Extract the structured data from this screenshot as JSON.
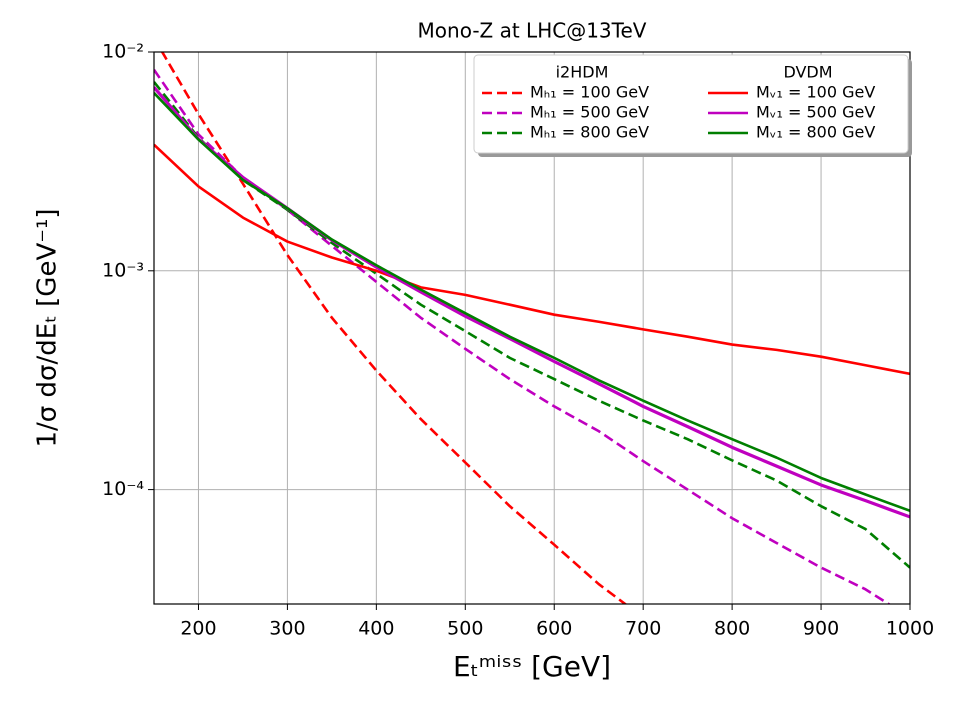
{
  "chart_data": {
    "type": "line",
    "title": "Mono-Z at LHC@13TeV",
    "x_label": "Eₜᵐⁱˢˢ [GeV]",
    "y_label": "1/σ dσ/dEₜ [GeV⁻¹]",
    "log_y": true,
    "grid": true,
    "legend_position": "upper right",
    "legend_titles": [
      "i2HDM",
      "DVDM"
    ],
    "x": [
      150,
      200,
      250,
      300,
      350,
      400,
      450,
      500,
      550,
      600,
      650,
      700,
      750,
      800,
      850,
      900,
      950,
      1000
    ],
    "xlim": [
      150,
      1000
    ],
    "xticks": [
      200,
      300,
      400,
      500,
      600,
      700,
      800,
      900,
      1000
    ],
    "ylim": [
      3e-05,
      0.01
    ],
    "yticks": [
      {
        "value": 0.0001,
        "label": "10⁻⁴"
      },
      {
        "value": 0.001,
        "label": "10⁻³"
      },
      {
        "value": 0.01,
        "label": "10⁻²"
      }
    ],
    "series": [
      {
        "name": "Mₕ₁ = 100 GeV",
        "color": "#ff0000",
        "linestyle": "dashed",
        "values": [
          0.0116,
          0.0052,
          0.0025,
          0.00118,
          0.00061,
          0.00035,
          0.00021,
          0.000133,
          8.4e-05,
          5.6e-05,
          3.7e-05,
          2.6e-05,
          null,
          null,
          null,
          null,
          null,
          null
        ]
      },
      {
        "name": "Mₕ₁ = 500 GeV",
        "color": "#bf00bf",
        "linestyle": "dashed",
        "values": [
          0.0083,
          0.0042,
          0.00267,
          0.0019,
          0.0013,
          0.00089,
          0.00061,
          0.00044,
          0.00032,
          0.00024,
          0.000185,
          0.000135,
          0.0001,
          7.4e-05,
          5.7e-05,
          4.4e-05,
          3.5e-05,
          2.6e-05
        ]
      },
      {
        "name": "Mₕ₁ = 800 GeV",
        "color": "#007f00",
        "linestyle": "dashed",
        "values": [
          0.0073,
          0.00406,
          0.0026,
          0.0019,
          0.00134,
          0.00097,
          0.0007,
          0.00053,
          0.0004,
          0.00032,
          0.000255,
          0.000207,
          0.00017,
          0.000136,
          0.00011,
          8.4e-05,
          6.6e-05,
          4.4e-05
        ]
      },
      {
        "name": "Mᵥ₁ = 100 GeV",
        "color": "#ff0000",
        "linestyle": "solid",
        "values": [
          0.00377,
          0.00243,
          0.00175,
          0.00136,
          0.00115,
          0.001,
          0.00084,
          0.000776,
          0.0007,
          0.00063,
          0.000585,
          0.00054,
          0.0005,
          0.00046,
          0.000435,
          0.000405,
          0.00037,
          0.000338
        ]
      },
      {
        "name": "Mᵥ₁ = 500 GeV",
        "color": "#bf00bf",
        "linestyle": "solid",
        "values": [
          0.0069,
          0.004,
          0.00267,
          0.00193,
          0.00138,
          0.00104,
          0.0008,
          0.00062,
          0.00049,
          0.000385,
          0.000305,
          0.00024,
          0.000194,
          0.000156,
          0.000128,
          0.000105,
          8.9e-05,
          7.5e-05
        ]
      },
      {
        "name": "Mᵥ₁ = 800 GeV",
        "color": "#007f00",
        "linestyle": "solid",
        "values": [
          0.0065,
          0.00398,
          0.0026,
          0.00193,
          0.00139,
          0.00106,
          0.00082,
          0.00064,
          0.0005,
          0.0004,
          0.000316,
          0.000255,
          0.000207,
          0.00017,
          0.00014,
          0.000113,
          9.5e-05,
          8e-05
        ]
      }
    ]
  }
}
